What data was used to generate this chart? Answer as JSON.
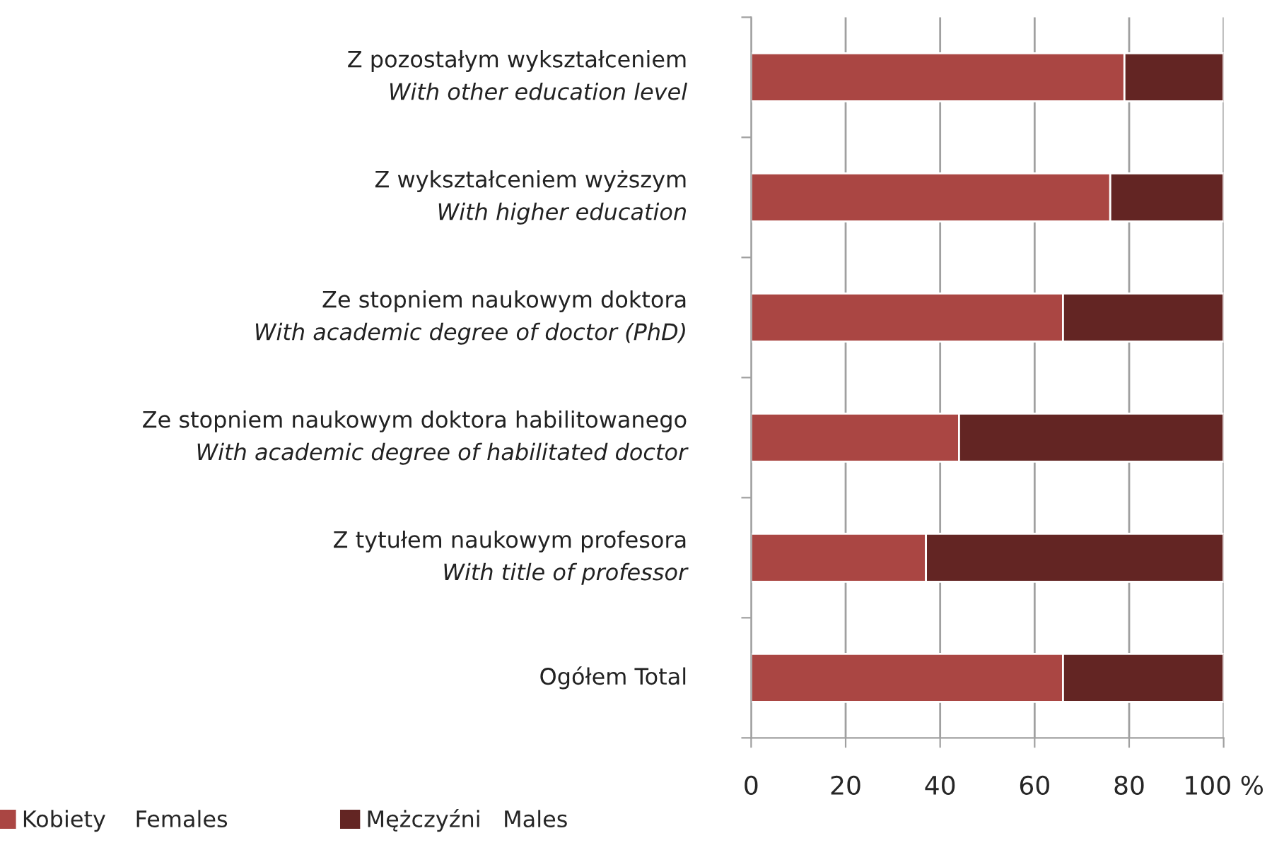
{
  "chart_data": {
    "type": "bar",
    "orientation": "horizontal",
    "stacked": true,
    "categories": [
      "Z pozostałym wykształceniem\nWith other education level",
      "Z wykształceniem wyższym\nWith higher education",
      "Ze stopniem naukowym doktora\nWith academic degree of doctor (PhD)",
      "Ze stopniem naukowym doktora habilitowanego\nWith academic degree of habilitated doctor",
      "Z tytułem naukowym profesora\nWith title of professor",
      "Ogółem Total"
    ],
    "series": [
      {
        "name": "Kobiety    Females",
        "color": "#aa4643",
        "values": [
          79,
          76,
          66,
          44,
          37,
          66
        ]
      },
      {
        "name": "Mężczyźni   Males",
        "color": "#632523",
        "values": [
          21,
          24,
          34,
          56,
          63,
          34
        ]
      }
    ],
    "xlim": [
      0,
      100
    ],
    "xticks": [
      0,
      20,
      40,
      60,
      80,
      {
        "value": 100,
        "label": "100 %"
      }
    ],
    "grid": "x",
    "legend": "bottom"
  }
}
